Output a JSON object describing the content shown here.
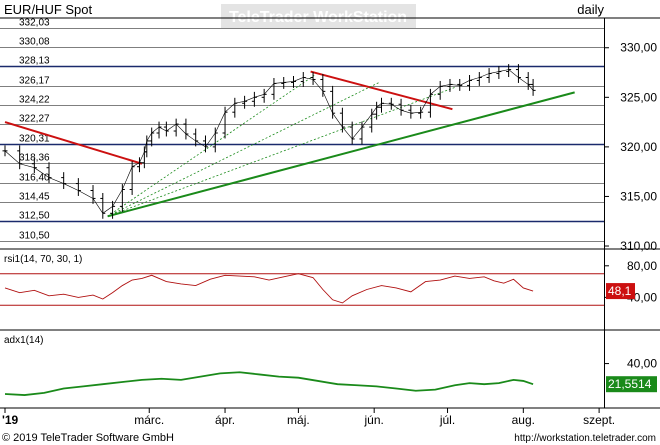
{
  "header": {
    "instrument": "EUR/HUF Spot",
    "period": "daily",
    "watermark": "TeleTrader WorkStation"
  },
  "footer": {
    "copyright": "© 2019 TeleTrader Software GmbH",
    "url": "http://workstation.teletrader.com"
  },
  "colors": {
    "price": "#000000",
    "level_line": "#1a2a6c",
    "resistance": "#cc1010",
    "support": "#1a8a1a",
    "rsi": "#b01010",
    "adx": "#1a8a1a",
    "rsi_badge": "#cc1010",
    "adx_badge": "#1a8a1a"
  },
  "chart_data": [
    {
      "type": "line",
      "title": "EUR/HUF Spot",
      "x_labels": [
        "'19",
        "márc.",
        "ápr.",
        "máj.",
        "jún.",
        "júl.",
        "aug.",
        "szept."
      ],
      "x_ticks_days": [
        0,
        59,
        90,
        120,
        151,
        181,
        212,
        243
      ],
      "xlim_days": [
        0,
        245
      ],
      "y_axis_labels": [
        "330,00",
        "325,00",
        "320,00",
        "315,00",
        "310,00"
      ],
      "y_axis_values": [
        330,
        325,
        320,
        315,
        310
      ],
      "ylim": [
        309.8,
        332.9
      ],
      "level_labels": [
        "332,03",
        "330,08",
        "328,13",
        "326,17",
        "324,22",
        "322,27",
        "320,31",
        "318,36",
        "316,40",
        "314,45",
        "312,50",
        "310,50"
      ],
      "level_values": [
        332.03,
        330.08,
        328.13,
        326.17,
        324.22,
        322.27,
        320.31,
        318.36,
        316.4,
        314.45,
        312.5,
        310.5
      ],
      "strong_levels": [
        328.13,
        320.31,
        312.5
      ],
      "price_series": {
        "days": [
          0,
          6,
          12,
          18,
          24,
          30,
          36,
          40,
          44,
          48,
          52,
          55,
          57,
          58,
          60,
          63,
          66,
          70,
          74,
          78,
          82,
          86,
          90,
          94,
          98,
          102,
          106,
          110,
          114,
          118,
          122,
          126,
          130,
          134,
          138,
          142,
          146,
          150,
          152,
          154,
          158,
          162,
          166,
          170,
          174,
          178,
          182,
          186,
          190,
          194,
          198,
          202,
          206,
          210,
          214,
          216
        ],
        "values": [
          319.6,
          318.3,
          317.9,
          316.9,
          316.3,
          315.6,
          314.8,
          313.3,
          314.0,
          315.7,
          318.0,
          318.4,
          319.5,
          320.6,
          321.4,
          322.0,
          321.6,
          322.3,
          321.3,
          320.6,
          320.0,
          321.4,
          323.5,
          324.4,
          324.6,
          325.0,
          325.3,
          326.4,
          326.5,
          326.6,
          327.0,
          326.8,
          325.6,
          323.4,
          322.0,
          320.8,
          322.0,
          323.3,
          324.0,
          324.4,
          324.3,
          323.7,
          323.4,
          323.5,
          325.3,
          326.1,
          326.3,
          326.2,
          326.7,
          327.0,
          327.4,
          327.6,
          327.8,
          327.0,
          326.3,
          325.7
        ]
      },
      "trendlines": [
        {
          "kind": "resistance",
          "x_days": [
            0,
            56
          ],
          "y_values": [
            322.5,
            318.3
          ]
        },
        {
          "kind": "resistance",
          "x_days": [
            125,
            183
          ],
          "y_values": [
            327.6,
            323.8
          ]
        },
        {
          "kind": "support",
          "x_days": [
            42,
            233
          ],
          "y_values": [
            313.0,
            325.5
          ]
        },
        {
          "kind": "fan",
          "x_days": [
            42,
            127
          ],
          "y_values": [
            313.0,
            327.3
          ]
        },
        {
          "kind": "fan",
          "x_days": [
            42,
            153
          ],
          "y_values": [
            313.0,
            326.5
          ]
        },
        {
          "kind": "fan",
          "x_days": [
            42,
            184
          ],
          "y_values": [
            313.0,
            326.0
          ]
        }
      ]
    },
    {
      "type": "line",
      "name": "rsi1(14, 70, 30, 1)",
      "ylim": [
        0,
        100
      ],
      "y_axis_labels": [
        "80,00",
        "40,00"
      ],
      "y_axis_values": [
        80,
        40
      ],
      "bands": [
        70,
        30
      ],
      "last_value_label": "48,1",
      "days": [
        0,
        6,
        12,
        18,
        24,
        30,
        36,
        40,
        44,
        48,
        52,
        56,
        60,
        66,
        72,
        78,
        84,
        90,
        96,
        102,
        108,
        114,
        120,
        126,
        130,
        134,
        138,
        142,
        148,
        154,
        160,
        166,
        172,
        178,
        184,
        190,
        196,
        200,
        204,
        208,
        212,
        216
      ],
      "values": [
        52,
        46,
        49,
        42,
        44,
        40,
        43,
        38,
        46,
        55,
        62,
        64,
        68,
        60,
        57,
        55,
        63,
        68,
        67,
        66,
        62,
        66,
        70,
        65,
        50,
        37,
        33,
        42,
        50,
        55,
        52,
        47,
        60,
        62,
        67,
        64,
        66,
        61,
        58,
        63,
        52,
        48
      ]
    },
    {
      "type": "line",
      "name": "adx1(14)",
      "ylim": [
        0,
        70
      ],
      "y_axis_labels": [
        "40,00"
      ],
      "y_axis_values": [
        40
      ],
      "last_value_label": "21,5514",
      "days": [
        0,
        8,
        16,
        24,
        32,
        40,
        48,
        56,
        64,
        72,
        80,
        88,
        96,
        104,
        112,
        120,
        128,
        136,
        144,
        152,
        160,
        168,
        176,
        184,
        190,
        196,
        202,
        208,
        212,
        216
      ],
      "values": [
        12,
        11,
        13,
        17,
        19,
        21,
        23,
        25,
        26,
        25,
        28,
        31,
        32,
        30,
        28,
        27,
        24,
        21,
        20,
        19,
        17,
        15,
        16,
        20,
        22,
        21,
        22,
        25,
        24,
        21
      ]
    }
  ]
}
